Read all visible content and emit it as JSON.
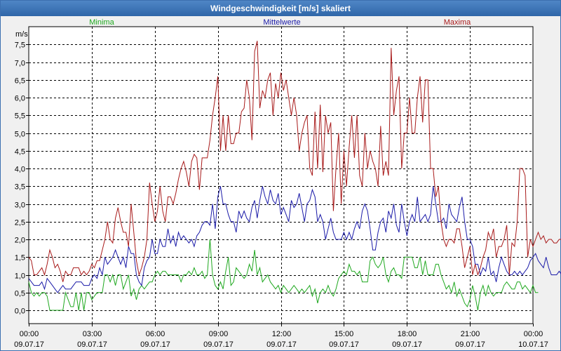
{
  "window": {
    "title": "Windgeschwindigkeit [m/s] skaliert"
  },
  "chart_data": {
    "type": "line",
    "title": "Windgeschwindigkeit [m/s] skaliert",
    "ylabel": "m/s",
    "xlabel": "",
    "ylim": [
      -0.5,
      8.0
    ],
    "xlim": [
      0,
      24
    ],
    "grid": true,
    "yticks": [
      0.0,
      0.5,
      1.0,
      1.5,
      2.0,
      2.5,
      3.0,
      3.5,
      4.0,
      4.5,
      5.0,
      5.5,
      6.0,
      6.5,
      7.0,
      7.5
    ],
    "ytick_labels": [
      "0,0",
      "0,5",
      "1,0",
      "1,5",
      "2,0",
      "2,5",
      "3,0",
      "3,5",
      "4,0",
      "4,5",
      "5,0",
      "5,5",
      "6,0",
      "6,5",
      "7,0",
      "7,5"
    ],
    "xticks": [
      {
        "x": 0,
        "time": "00:00",
        "date": "09.07.17"
      },
      {
        "x": 3,
        "time": "03:00",
        "date": "09.07.17"
      },
      {
        "x": 6,
        "time": "06:00",
        "date": "09.07.17"
      },
      {
        "x": 9,
        "time": "09:00",
        "date": "09.07.17"
      },
      {
        "x": 12,
        "time": "12:00",
        "date": "09.07.17"
      },
      {
        "x": 15,
        "time": "15:00",
        "date": "09.07.17"
      },
      {
        "x": 18,
        "time": "18:00",
        "date": "09.07.17"
      },
      {
        "x": 21,
        "time": "21:00",
        "date": "09.07.17"
      },
      {
        "x": 24,
        "time": "00:00",
        "date": "10.07.17"
      }
    ],
    "x_step_hours": 0.125,
    "series": [
      {
        "name": "Minima",
        "color": "#1fa81f",
        "values": [
          0.8,
          0.5,
          0.4,
          0.5,
          0.4,
          0.5,
          0.5,
          0.4,
          0.0,
          0.0,
          0.0,
          0.0,
          0.0,
          0.0,
          0.5,
          0.3,
          0.1,
          0.1,
          0.5,
          0.0,
          0.5,
          0.0,
          0.5,
          0.5,
          0.3,
          0.4,
          0.5,
          0.5,
          0.5,
          1.0,
          1.0,
          0.8,
          1.0,
          0.7,
          1.0,
          1.0,
          0.6,
          0.8,
          1.0,
          0.4,
          0.6,
          0.3,
          0.6,
          0.7,
          0.6,
          0.7,
          0.8,
          0.8,
          1.0,
          1.1,
          1.0,
          1.1,
          1.1,
          1.0,
          1.0,
          1.0,
          1.0,
          1.0,
          0.8,
          1.0,
          1.0,
          1.1,
          1.0,
          1.2,
          1.0,
          1.0,
          1.1,
          0.9,
          1.0,
          2.0,
          1.0,
          0.7,
          0.6,
          0.8,
          0.6,
          1.1,
          1.5,
          0.7,
          0.8,
          1.2,
          1.1,
          1.0,
          0.9,
          1.0,
          1.3,
          1.1,
          1.7,
          1.0,
          1.2,
          0.8,
          0.9,
          1.0,
          0.8,
          0.7,
          0.6,
          0.7,
          0.5,
          0.7,
          0.6,
          0.5,
          0.6,
          0.7,
          0.6,
          0.5,
          0.6,
          0.5,
          0.6,
          0.7,
          0.4,
          0.6,
          0.2,
          0.5,
          0.6,
          0.5,
          0.7,
          0.5,
          0.4,
          0.6,
          0.9,
          1.0,
          1.1,
          1.0,
          1.3,
          1.1,
          1.1,
          1.0,
          1.1,
          0.8,
          0.8,
          0.8,
          1.4,
          1.5,
          1.3,
          1.2,
          1.3,
          1.5,
          1.0,
          0.8,
          1.1,
          1.2,
          1.0,
          1.0,
          0.9,
          1.5,
          1.5,
          1.5,
          1.5,
          1.2,
          1.2,
          1.5,
          1.0,
          1.4,
          1.0,
          1.0,
          1.0,
          1.3,
          1.3,
          1.0,
          0.8,
          0.6,
          0.7,
          0.5,
          0.8,
          0.4,
          0.6,
          0.4,
          0.2,
          0.1,
          0.3,
          0.7,
          0.4,
          0.0,
          0.5,
          0.7,
          0.4,
          0.7,
          0.5,
          0.4,
          0.5,
          0.5,
          0.5,
          0.7,
          0.8,
          0.7,
          0.6,
          0.6,
          0.8,
          0.8,
          0.6,
          0.7,
          0.6,
          0.5,
          0.7,
          0.5,
          0.5
        ]
      },
      {
        "name": "Mittelwerte",
        "color": "#1a1aa8",
        "values": [
          0.9,
          0.8,
          0.7,
          0.7,
          0.7,
          0.8,
          0.6,
          0.9,
          0.8,
          0.7,
          0.6,
          0.5,
          0.6,
          0.7,
          0.6,
          0.6,
          0.6,
          0.7,
          0.8,
          0.8,
          0.8,
          0.7,
          0.7,
          0.7,
          0.9,
          1.0,
          0.9,
          1.2,
          1.0,
          1.5,
          1.3,
          1.4,
          1.5,
          1.7,
          1.5,
          1.3,
          1.5,
          1.2,
          1.8,
          1.6,
          1.6,
          1.0,
          0.8,
          0.7,
          1.2,
          1.4,
          1.5,
          2.0,
          1.6,
          1.6,
          2.0,
          1.8,
          1.8,
          2.3,
          1.9,
          2.1,
          1.8,
          2.2,
          2.0,
          2.1,
          2.0,
          1.9,
          2.0,
          1.8,
          2.1,
          2.2,
          2.4,
          2.5,
          2.5,
          2.4,
          3.0,
          2.3,
          3.2,
          3.5,
          3.0,
          3.0,
          2.7,
          2.5,
          2.5,
          2.2,
          2.8,
          2.6,
          2.8,
          2.6,
          2.5,
          2.9,
          3.1,
          2.6,
          3.1,
          3.5,
          3.2,
          3.0,
          3.4,
          3.1,
          3.0,
          3.3,
          2.7,
          2.9,
          2.7,
          2.5,
          3.1,
          2.9,
          3.0,
          3.3,
          2.9,
          2.5,
          3.0,
          3.1,
          3.4,
          3.2,
          2.5,
          2.7,
          2.5,
          2.0,
          2.3,
          2.6,
          2.2,
          2.0,
          2.0,
          2.0,
          2.2,
          2.0,
          2.2,
          2.0,
          2.3,
          2.5,
          2.3,
          2.8,
          3.0,
          2.8,
          2.3,
          1.7,
          1.7,
          2.2,
          2.5,
          2.6,
          2.2,
          2.8,
          2.6,
          3.0,
          2.4,
          2.2,
          3.0,
          2.5,
          2.1,
          2.5,
          2.7,
          2.5,
          3.2,
          2.5,
          2.6,
          2.7,
          2.5,
          2.7,
          3.5,
          3.0,
          2.5,
          2.5,
          2.6,
          2.3,
          3.0,
          2.7,
          2.6,
          2.5,
          2.9,
          3.2,
          2.5,
          2.0,
          2.0,
          1.8,
          1.3,
          1.3,
          1.0,
          1.2,
          1.1,
          1.5,
          1.0,
          1.1,
          0.8,
          1.2,
          1.5,
          1.3,
          1.1,
          1.0,
          1.0,
          1.1,
          1.0,
          1.1,
          1.0,
          1.1,
          1.2,
          1.4,
          1.5,
          1.6,
          1.4,
          1.3,
          1.2,
          1.5,
          1.2,
          1.0,
          1.0,
          1.0,
          1.1,
          1.0
        ]
      },
      {
        "name": "Maxima",
        "color": "#a81a1a",
        "values": [
          1.5,
          1.4,
          1.0,
          1.0,
          1.1,
          1.2,
          1.0,
          1.3,
          1.7,
          1.5,
          1.2,
          1.3,
          1.1,
          0.8,
          1.1,
          1.0,
          1.0,
          1.2,
          1.2,
          1.2,
          1.0,
          1.1,
          1.0,
          1.1,
          1.3,
          1.2,
          1.4,
          1.4,
          1.7,
          2.0,
          2.5,
          2.0,
          1.9,
          2.6,
          2.9,
          2.5,
          2.2,
          2.2,
          1.8,
          3.0,
          2.2,
          1.4,
          1.0,
          1.2,
          1.5,
          2.0,
          3.6,
          3.0,
          2.5,
          2.8,
          3.5,
          2.8,
          2.5,
          3.2,
          3.2,
          3.0,
          3.3,
          3.7,
          4.0,
          4.2,
          3.9,
          3.5,
          4.2,
          4.4,
          4.3,
          3.4,
          4.3,
          4.3,
          4.3,
          4.8,
          5.5,
          6.0,
          6.6,
          4.5,
          5.5,
          4.5,
          5.5,
          4.7,
          4.7,
          5.0,
          5.0,
          5.6,
          5.7,
          6.5,
          6.0,
          4.8,
          7.3,
          7.6,
          5.7,
          6.2,
          6.0,
          6.5,
          6.7,
          5.5,
          6.4,
          6.0,
          6.7,
          6.2,
          6.5,
          6.0,
          5.5,
          6.0,
          5.5,
          4.5,
          5.0,
          5.3,
          5.5,
          4.0,
          3.8,
          5.6,
          4.0,
          5.8,
          3.9,
          5.5,
          5.0,
          5.3,
          2.8,
          4.0,
          5.0,
          3.0,
          4.5,
          3.5,
          4.6,
          5.5,
          4.3,
          5.5,
          3.8,
          3.5,
          5.0,
          4.0,
          4.5,
          4.2,
          4.0,
          3.5,
          5.2,
          3.8,
          4.2,
          3.8,
          7.4,
          5.5,
          6.2,
          6.6,
          4.0,
          5.0,
          5.0,
          6.0,
          5.0,
          5.0,
          6.0,
          6.6,
          5.3,
          6.5,
          6.5,
          4.0,
          4.0,
          3.2,
          3.5,
          2.5,
          2.0,
          1.8,
          2.0,
          2.0,
          1.9,
          2.3,
          2.3,
          1.8,
          1.2,
          1.5,
          1.8,
          1.0,
          1.3,
          1.0,
          1.2,
          1.5,
          1.7,
          2.2,
          2.0,
          2.3,
          1.5,
          1.8,
          1.8,
          2.0,
          2.4,
          1.0,
          1.9,
          1.8,
          2.5,
          4.0,
          4.0,
          3.8,
          1.5,
          2.0,
          1.8,
          2.0,
          2.2,
          2.0,
          2.1,
          1.9,
          2.0,
          2.0,
          1.9,
          1.9,
          2.0,
          2.0,
          2.0,
          1.9,
          2.0
        ]
      }
    ]
  }
}
